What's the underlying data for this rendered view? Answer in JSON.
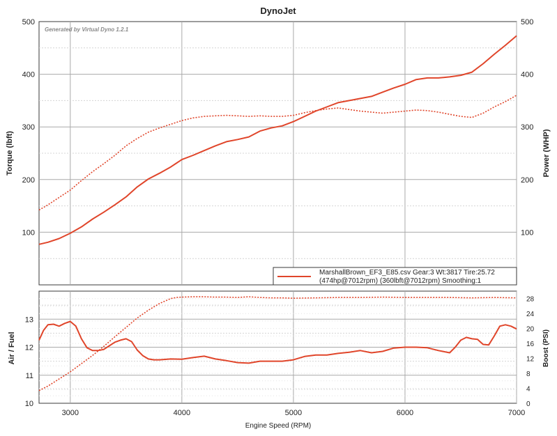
{
  "chart_data": [
    {
      "type": "line",
      "title": "DynoJet",
      "watermark": "Generated by Virtual Dyno 1.2.1",
      "xlabel": "Engine Speed (RPM)",
      "ylabel_left": "Torque (lbft)",
      "ylabel_right": "Power (WHP)",
      "xlim": [
        2720,
        7000
      ],
      "ylim": [
        0,
        500
      ],
      "x_ticks": [
        "3000",
        "4000",
        "5000",
        "6000",
        "7000"
      ],
      "y_ticks": [
        "100",
        "200",
        "300",
        "400",
        "500"
      ],
      "y_ticks_right": [
        "100",
        "200",
        "300",
        "400",
        "500"
      ],
      "grid": true,
      "legend_position": "bottom-right",
      "legend_line1": "MarshallBrown_EF3_E85.csv Gear:3 Wt:3817 Tire:25.72",
      "legend_line2": "(474hp@7012rpm) (360lbft@7012rpm) Smoothing:1",
      "line_color": "#e0452a",
      "series": [
        {
          "style": "solid",
          "x": [
            2720,
            2800,
            2900,
            3000,
            3100,
            3200,
            3300,
            3400,
            3500,
            3600,
            3700,
            3800,
            3900,
            4000,
            4100,
            4200,
            4300,
            4400,
            4500,
            4600,
            4700,
            4800,
            4900,
            5000,
            5100,
            5200,
            5300,
            5400,
            5500,
            5600,
            5700,
            5800,
            5900,
            6000,
            6100,
            6200,
            6300,
            6400,
            6500,
            6600,
            6700,
            6800,
            6900,
            7000
          ],
          "values": [
            77,
            81,
            88,
            98,
            110,
            125,
            138,
            152,
            167,
            186,
            201,
            212,
            224,
            238,
            246,
            255,
            264,
            272,
            276,
            281,
            292,
            298,
            302,
            310,
            320,
            330,
            338,
            346,
            350,
            354,
            358,
            366,
            374,
            381,
            390,
            393,
            393,
            395,
            398,
            404,
            420,
            438,
            455,
            473
          ]
        },
        {
          "style": "dotted",
          "x": [
            2720,
            2800,
            2900,
            3000,
            3100,
            3200,
            3300,
            3400,
            3500,
            3600,
            3700,
            3800,
            3900,
            4000,
            4100,
            4200,
            4300,
            4400,
            4500,
            4600,
            4700,
            4800,
            4900,
            5000,
            5100,
            5200,
            5300,
            5400,
            5500,
            5600,
            5700,
            5800,
            5900,
            6000,
            6100,
            6200,
            6300,
            6400,
            6500,
            6600,
            6700,
            6800,
            6900,
            7000
          ],
          "values": [
            142,
            152,
            166,
            180,
            198,
            215,
            230,
            246,
            264,
            278,
            290,
            298,
            305,
            312,
            317,
            320,
            321,
            322,
            321,
            320,
            321,
            320,
            320,
            322,
            327,
            331,
            334,
            336,
            333,
            330,
            328,
            326,
            328,
            330,
            332,
            331,
            328,
            324,
            320,
            318,
            326,
            338,
            348,
            360
          ]
        }
      ]
    },
    {
      "type": "line",
      "xlabel": "Engine Speed (RPM)",
      "ylabel_left": "Air / Fuel",
      "ylabel_right": "Boost (PSI)",
      "xlim": [
        2720,
        7000
      ],
      "ylim": [
        10,
        14
      ],
      "ylim_right": [
        0,
        30
      ],
      "x_ticks": [
        "3000",
        "4000",
        "5000",
        "6000",
        "7000"
      ],
      "y_ticks": [
        "10",
        "11",
        "12",
        "13"
      ],
      "y_ticks_right": [
        "0",
        "4",
        "8",
        "12",
        "16",
        "20",
        "24",
        "28"
      ],
      "grid": true,
      "line_color": "#e0452a",
      "series": [
        {
          "style": "solid",
          "axis": "left",
          "x": [
            2720,
            2760,
            2800,
            2850,
            2900,
            2950,
            3000,
            3050,
            3100,
            3150,
            3200,
            3250,
            3300,
            3350,
            3400,
            3450,
            3500,
            3550,
            3600,
            3650,
            3700,
            3750,
            3800,
            3900,
            4000,
            4100,
            4200,
            4300,
            4400,
            4500,
            4600,
            4700,
            4800,
            4900,
            5000,
            5100,
            5200,
            5300,
            5400,
            5500,
            5600,
            5700,
            5800,
            5900,
            6000,
            6100,
            6200,
            6300,
            6400,
            6450,
            6500,
            6550,
            6600,
            6650,
            6700,
            6750,
            6800,
            6850,
            6900,
            6950,
            7000
          ],
          "values": [
            12.25,
            12.6,
            12.8,
            12.82,
            12.75,
            12.85,
            12.92,
            12.75,
            12.3,
            11.98,
            11.88,
            11.88,
            11.92,
            12.05,
            12.18,
            12.25,
            12.3,
            12.2,
            11.9,
            11.7,
            11.58,
            11.55,
            11.55,
            11.58,
            11.57,
            11.63,
            11.68,
            11.58,
            11.52,
            11.45,
            11.43,
            11.5,
            11.5,
            11.5,
            11.55,
            11.67,
            11.72,
            11.72,
            11.78,
            11.82,
            11.88,
            11.8,
            11.85,
            11.97,
            12.0,
            12.0,
            11.98,
            11.88,
            11.8,
            12.0,
            12.25,
            12.35,
            12.3,
            12.28,
            12.1,
            12.08,
            12.4,
            12.75,
            12.8,
            12.75,
            12.65
          ]
        },
        {
          "style": "dotted",
          "axis": "right",
          "x": [
            2720,
            2800,
            2900,
            3000,
            3100,
            3200,
            3300,
            3400,
            3500,
            3600,
            3700,
            3800,
            3900,
            3950,
            4000,
            4100,
            4200,
            4300,
            4400,
            4500,
            4600,
            4700,
            4800,
            4900,
            5000,
            5200,
            5400,
            5600,
            5800,
            6000,
            6200,
            6400,
            6600,
            6800,
            7000
          ],
          "values": [
            3.4,
            4.6,
            6.5,
            8.4,
            10.6,
            12.8,
            15.2,
            17.8,
            20.3,
            22.8,
            24.9,
            26.7,
            28.0,
            28.3,
            28.4,
            28.5,
            28.5,
            28.4,
            28.4,
            28.3,
            28.5,
            28.3,
            28.2,
            28.2,
            28.1,
            28.2,
            28.3,
            28.3,
            28.4,
            28.3,
            28.3,
            28.3,
            28.2,
            28.3,
            28.2
          ]
        }
      ]
    }
  ]
}
